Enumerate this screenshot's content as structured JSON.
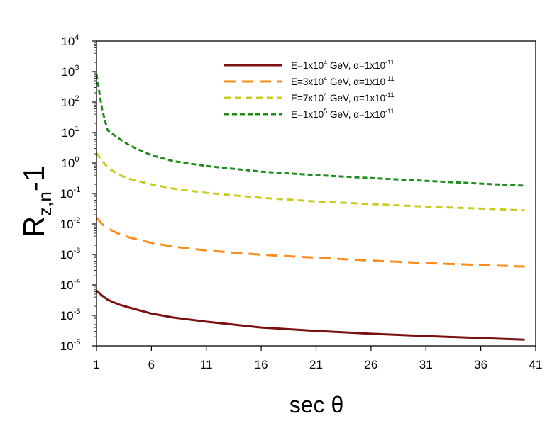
{
  "chart_data": {
    "type": "line",
    "title": "",
    "xlabel": "sec θ",
    "ylabel_main": "R",
    "ylabel_sub": "z,n",
    "ylabel_tail": "-1",
    "x_scale": "linear",
    "y_scale": "log",
    "xlim": [
      1,
      41
    ],
    "ylim": [
      1e-06,
      10000.0
    ],
    "xticks": [
      1,
      6,
      11,
      16,
      21,
      26,
      31,
      36,
      41
    ],
    "yticks": [
      {
        "value": 1e-06,
        "base": "10",
        "exp": "-6"
      },
      {
        "value": 1e-05,
        "base": "10",
        "exp": "-5"
      },
      {
        "value": 0.0001,
        "base": "10",
        "exp": "-4"
      },
      {
        "value": 0.001,
        "base": "10",
        "exp": "-3"
      },
      {
        "value": 0.01,
        "base": "10",
        "exp": "-2"
      },
      {
        "value": 0.1,
        "base": "10",
        "exp": "-1"
      },
      {
        "value": 1.0,
        "base": "10",
        "exp": "0"
      },
      {
        "value": 10.0,
        "base": "10",
        "exp": "1"
      },
      {
        "value": 100.0,
        "base": "10",
        "exp": "2"
      },
      {
        "value": 1000.0,
        "base": "10",
        "exp": "3"
      },
      {
        "value": 10000.0,
        "base": "10",
        "exp": "4"
      }
    ],
    "grid": false,
    "legend_position": "top-right",
    "series": [
      {
        "name": "E=1x10^4 GeV, α=1x10^-11",
        "legend": {
          "a": "E=1x10",
          "a_sup": "4",
          "b": " GeV, α=1x10",
          "b_sup": "-11"
        },
        "color": "#7b1010",
        "dash": "solid",
        "x": [
          1,
          1.5,
          2,
          3,
          4,
          6,
          8,
          11,
          16,
          21,
          26,
          31,
          36,
          40
        ],
        "y": [
          6.5e-05,
          4.5e-05,
          3.3e-05,
          2.3e-05,
          1.8e-05,
          1.15e-05,
          8.5e-06,
          6.2e-06,
          4e-06,
          3.1e-06,
          2.5e-06,
          2.1e-06,
          1.8e-06,
          1.6e-06
        ]
      },
      {
        "name": "E=3x10^4 GeV, α=1x10^-11",
        "legend": {
          "a": "E=3x10",
          "a_sup": "4",
          "b": " GeV, α=1x10",
          "b_sup": "-11"
        },
        "color": "#ff8c1a",
        "dash": "long",
        "x": [
          1,
          1.5,
          2,
          3,
          4,
          6,
          8,
          11,
          16,
          21,
          26,
          31,
          36,
          40
        ],
        "y": [
          0.016,
          0.01,
          0.0072,
          0.0048,
          0.0036,
          0.0024,
          0.0018,
          0.00135,
          0.00098,
          0.00078,
          0.00063,
          0.00052,
          0.00045,
          0.0004
        ]
      },
      {
        "name": "E=7x10^4 GeV, α=1x10^-11",
        "legend": {
          "a": "E=7x10",
          "a_sup": "4",
          "b": " GeV, α=1x10",
          "b_sup": "-11"
        },
        "color": "#c8cc1e",
        "dash": "medium",
        "x": [
          1,
          1.5,
          2,
          3,
          4,
          6,
          8,
          11,
          16,
          21,
          26,
          31,
          36,
          40
        ],
        "y": [
          2.1,
          1.2,
          0.72,
          0.42,
          0.3,
          0.2,
          0.145,
          0.105,
          0.072,
          0.055,
          0.045,
          0.037,
          0.032,
          0.028
        ]
      },
      {
        "name": "E=1x10^5 GeV, α=1x10^-11",
        "legend": {
          "a": "E=1x10",
          "a_sup": "5",
          "b": " GeV, α=1x10",
          "b_sup": "-11"
        },
        "color": "#1e8c1e",
        "dash": "short",
        "x": [
          1,
          1.5,
          2,
          3,
          4,
          6,
          8,
          11,
          16,
          21,
          26,
          31,
          36,
          40
        ],
        "y": [
          800,
          60,
          12,
          6.5,
          3.8,
          1.8,
          1.15,
          0.8,
          0.52,
          0.4,
          0.32,
          0.26,
          0.21,
          0.18
        ]
      }
    ]
  }
}
